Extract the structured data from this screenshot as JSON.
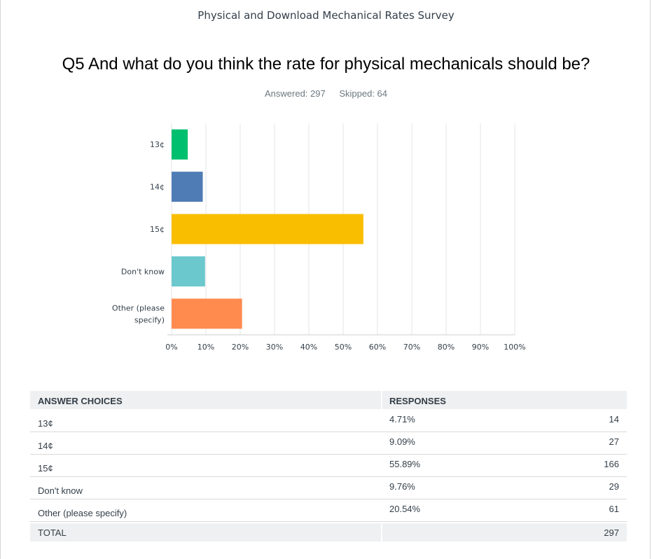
{
  "survey_title": "Physical and Download Mechanical Rates Survey",
  "question": "Q5 And what do you think the rate for physical mechanicals should be?",
  "stats": {
    "answered": "Answered: 297",
    "skipped": "Skipped: 64"
  },
  "chart_data": {
    "type": "bar",
    "orientation": "horizontal",
    "categories": [
      [
        "13¢"
      ],
      [
        "14¢"
      ],
      [
        "15¢"
      ],
      [
        "Don't know"
      ],
      [
        "Other (please",
        "specify)"
      ]
    ],
    "values": [
      4.71,
      9.09,
      55.89,
      9.76,
      20.54
    ],
    "colors": [
      "#00bf6f",
      "#507cb6",
      "#f9be00",
      "#6bc8cd",
      "#ff8b4f"
    ],
    "xlim": [
      0,
      100
    ],
    "x_ticks": [
      "0%",
      "10%",
      "20%",
      "30%",
      "40%",
      "50%",
      "60%",
      "70%",
      "80%",
      "90%",
      "100%"
    ],
    "grid": true
  },
  "table": {
    "headers": {
      "choice": "ANSWER CHOICES",
      "responses": "RESPONSES"
    },
    "rows": [
      {
        "choice": "13¢",
        "pct": "4.71%",
        "count": "14"
      },
      {
        "choice": "14¢",
        "pct": "9.09%",
        "count": "27"
      },
      {
        "choice": "15¢",
        "pct": "55.89%",
        "count": "166"
      },
      {
        "choice": "Don't know",
        "pct": "9.76%",
        "count": "29"
      },
      {
        "choice": "Other (please specify)",
        "pct": "20.54%",
        "count": "61"
      }
    ],
    "total": {
      "label": "TOTAL",
      "count": "297"
    }
  }
}
